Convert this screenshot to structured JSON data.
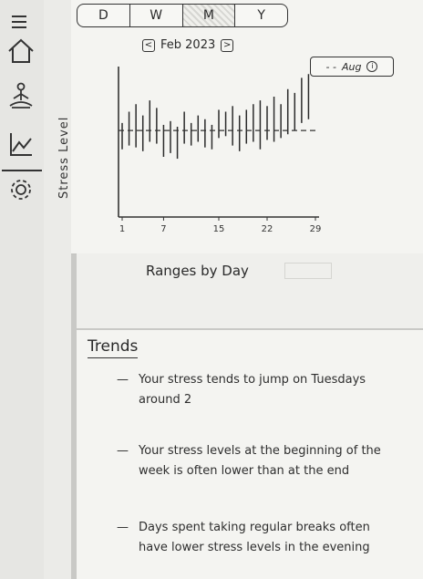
{
  "sidebar": {
    "icons": [
      "menu-icon",
      "home-icon",
      "meditation-icon",
      "chart-icon",
      "settings-icon"
    ]
  },
  "stress_axis_label": "Stress Level",
  "period_tabs": [
    {
      "label": "D",
      "active": false
    },
    {
      "label": "W",
      "active": false
    },
    {
      "label": "M",
      "active": true
    },
    {
      "label": "Y",
      "active": false
    }
  ],
  "month_nav": {
    "prev": "<",
    "label": "Feb 2023",
    "next": ">"
  },
  "avg_toggle": {
    "label": "Aug",
    "info": "i"
  },
  "chart_data": {
    "type": "range-bar",
    "x_ticks": [
      "1",
      "7",
      "15",
      "22",
      "29"
    ],
    "days": [
      1,
      2,
      3,
      4,
      5,
      6,
      7,
      8,
      9,
      10,
      11,
      12,
      13,
      14,
      15,
      16,
      17,
      18,
      19,
      20,
      21,
      22,
      23,
      24,
      25,
      26,
      27,
      28
    ],
    "ranges": [
      [
        3.6,
        5.0
      ],
      [
        3.8,
        5.6
      ],
      [
        3.7,
        6.0
      ],
      [
        3.5,
        5.4
      ],
      [
        4.0,
        6.2
      ],
      [
        3.9,
        5.8
      ],
      [
        3.2,
        4.9
      ],
      [
        3.4,
        5.1
      ],
      [
        3.1,
        4.8
      ],
      [
        3.9,
        5.6
      ],
      [
        3.8,
        5.0
      ],
      [
        4.0,
        5.4
      ],
      [
        3.7,
        5.2
      ],
      [
        3.6,
        4.9
      ],
      [
        4.2,
        5.7
      ],
      [
        4.3,
        5.6
      ],
      [
        3.8,
        5.9
      ],
      [
        3.5,
        5.4
      ],
      [
        3.9,
        5.7
      ],
      [
        4.0,
        6.0
      ],
      [
        3.6,
        6.2
      ],
      [
        4.1,
        5.9
      ],
      [
        4.0,
        6.4
      ],
      [
        4.2,
        6.0
      ],
      [
        4.4,
        6.8
      ],
      [
        4.6,
        6.6
      ],
      [
        5.0,
        7.4
      ],
      [
        5.2,
        7.6
      ]
    ],
    "average": 4.6,
    "ylim": [
      0,
      8
    ]
  },
  "caption": "Ranges by Day",
  "trends": {
    "title": "Trends",
    "items": [
      "Your stress tends to jump on Tuesdays around 2",
      "Your stress levels at the beginning of the week is often lower than at the end",
      "Days spent taking regular breaks often have lower stress levels in the evening"
    ]
  }
}
